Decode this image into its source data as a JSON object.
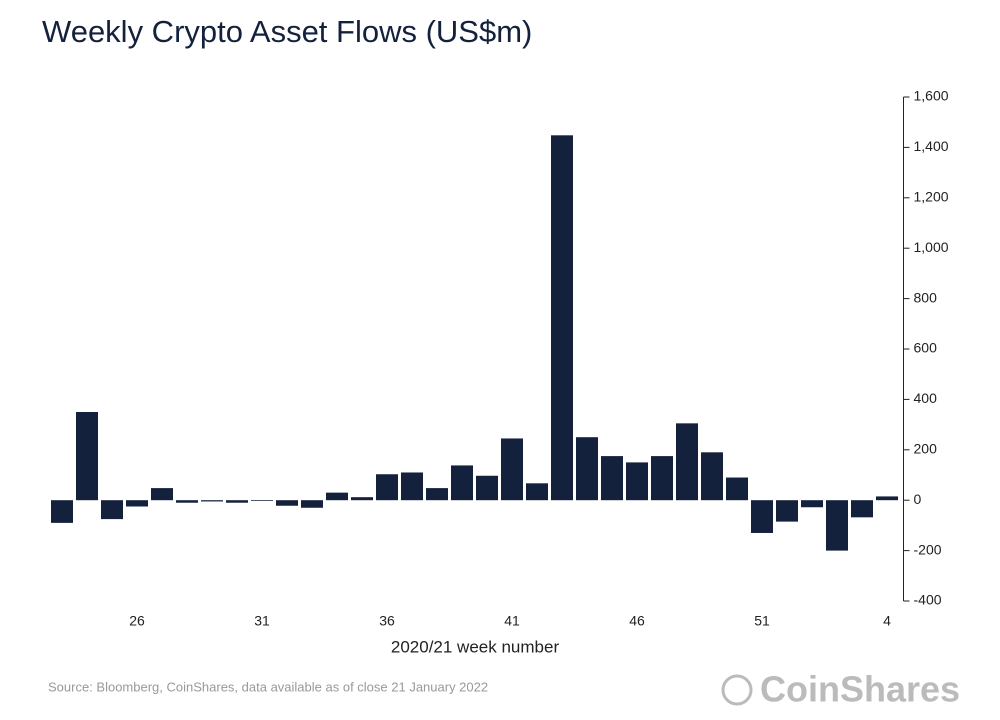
{
  "chart_data": {
    "type": "bar",
    "title": "Weekly Crypto Asset Flows (US$m)",
    "x_label": "2020/21 week number",
    "source": "Source: Bloomberg, CoinShares, data available as of close 21 January 2022",
    "brand": "CoinShares",
    "categories": [
      null,
      null,
      null,
      "26",
      null,
      null,
      null,
      null,
      "31",
      null,
      null,
      null,
      null,
      "36",
      null,
      null,
      null,
      null,
      "41",
      null,
      null,
      null,
      null,
      "46",
      null,
      null,
      null,
      null,
      "51",
      null,
      null,
      null,
      null,
      "4"
    ],
    "values": [
      -90,
      350,
      -75,
      -25,
      48,
      -10,
      -5,
      -10,
      -3,
      -22,
      -30,
      30,
      12,
      103,
      110,
      48,
      138,
      97,
      245,
      67,
      1448,
      250,
      175,
      150,
      175,
      305,
      190,
      90,
      -130,
      -85,
      -28,
      -200,
      -68,
      15
    ],
    "color": "#14213d",
    "ylim": [
      -400,
      1600
    ],
    "yticks": [
      {
        "value": 1600,
        "label": "1,600"
      },
      {
        "value": 1400,
        "label": "1,400"
      },
      {
        "value": 1200,
        "label": "1,200"
      },
      {
        "value": 1000,
        "label": "1,000"
      },
      800,
      600,
      400,
      200,
      0,
      -200,
      -400
    ],
    "y_axis_side": "right",
    "grid": false
  }
}
